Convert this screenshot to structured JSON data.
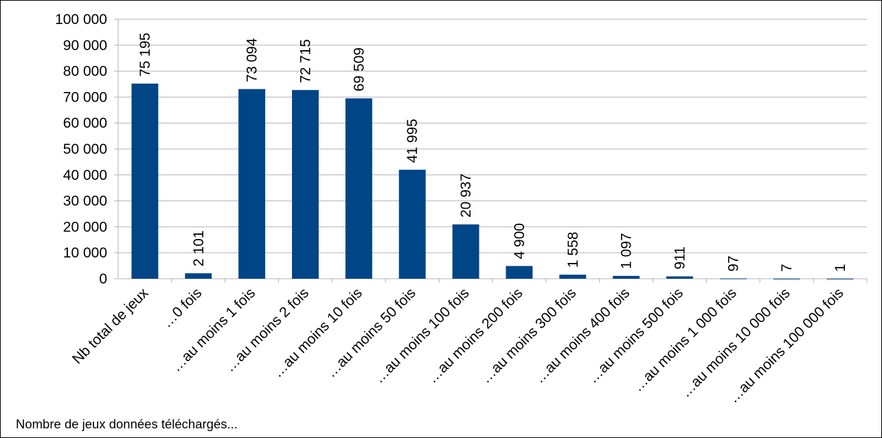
{
  "chart_data": {
    "type": "bar",
    "categories": [
      "Nb total de jeux",
      "…0 fois",
      "…au moins 1 fois",
      "…au moins 2 fois",
      "…au moins 10 fois",
      "…au moins 50 fois",
      "…au moins 100 fois",
      "…au moins 200 fois",
      "…au moins 300 fois",
      "…au moins 400 fois",
      "…au moins 500 fois",
      "…au moins 1 000 fois",
      "…au moins 10 000 fois",
      "…au moins 100 000 fois"
    ],
    "values": [
      75195,
      2101,
      73094,
      72715,
      69509,
      41995,
      20937,
      4900,
      1558,
      1097,
      911,
      97,
      7,
      1
    ],
    "data_labels": [
      "75 195",
      "2 101",
      "73 094",
      "72 715",
      "69 509",
      "41 995",
      "20 937",
      "4 900",
      "1 558",
      "1 097",
      "911",
      "97",
      "7",
      "1"
    ],
    "ylim": [
      0,
      100000
    ],
    "y_ticks": [
      0,
      10000,
      20000,
      30000,
      40000,
      50000,
      60000,
      70000,
      80000,
      90000,
      100000
    ],
    "y_tick_labels": [
      "0",
      "10 000",
      "20 000",
      "30 000",
      "40 000",
      "50 000",
      "60 000",
      "70 000",
      "80 000",
      "90 000",
      "100 000"
    ],
    "grid": true,
    "bar_color": "#004586",
    "title": "",
    "xlabel": "Nombre de jeux données téléchargés...",
    "ylabel": ""
  }
}
